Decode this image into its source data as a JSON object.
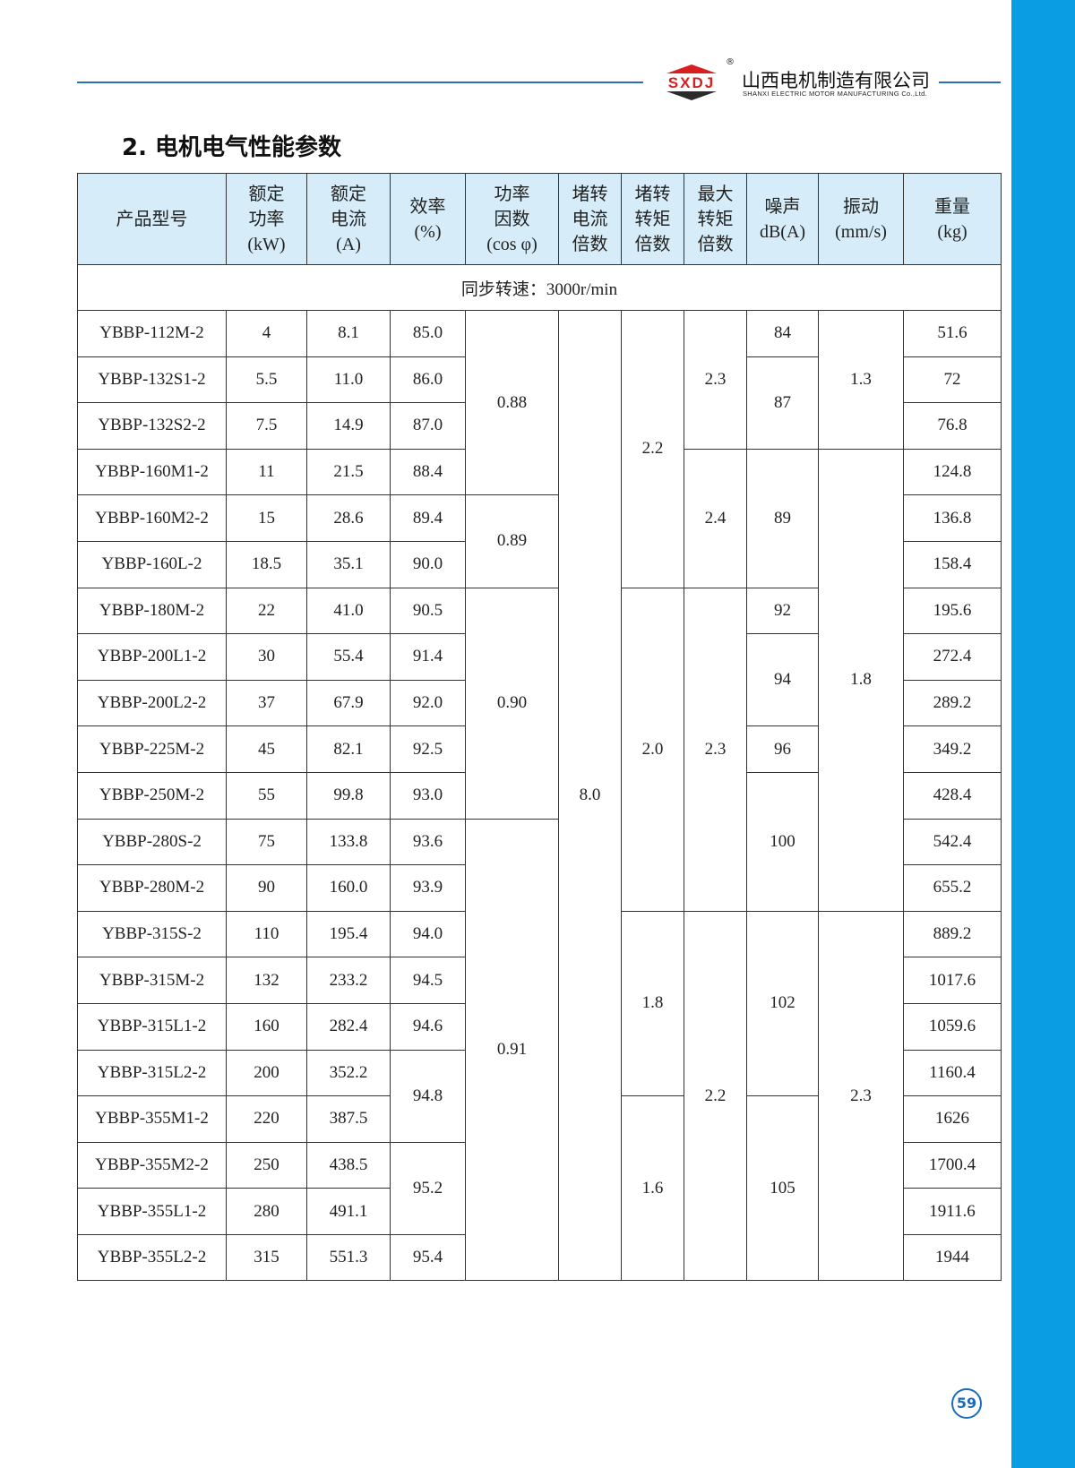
{
  "brand": {
    "name_cn": "山西电机制造有限公司",
    "name_en": "SHANXI ELECTRIC MOTOR MANUFACTURING Co.,Ltd.",
    "logo_text": "SXDJ",
    "registered": "®",
    "colors": {
      "logo_red": "#d81e1e",
      "logo_dark": "#2b2b2b",
      "accent_blue": "#0a9de4",
      "line_blue": "#2a6fb5"
    }
  },
  "section_title": "2. 电机电气性能参数",
  "table": {
    "headers": [
      "产品型号",
      "额定\n功率\n(kW)",
      "额定\n电流\n(A)",
      "效率\n(%)",
      "功率\n因数\n(cos φ)",
      "堵转\n电流\n倍数",
      "堵转\n转矩\n倍数",
      "最大\n转矩\n倍数",
      "噪声\ndB(A)",
      "振动\n(mm/s)",
      "重量\n(kg)"
    ],
    "group_label": "同步转速：3000r/min",
    "rows": [
      [
        {
          "t": "YBBP-112M-2"
        },
        {
          "t": "4"
        },
        {
          "t": "8.1"
        },
        {
          "t": "85.0"
        },
        {
          "t": "0.88",
          "rs": 4
        },
        {
          "t": "8.0",
          "rs": 21
        },
        {
          "t": "2.2",
          "rs": 6
        },
        {
          "t": "2.3",
          "rs": 3
        },
        {
          "t": "84"
        },
        {
          "t": "1.3",
          "rs": 3
        },
        {
          "t": "51.6"
        }
      ],
      [
        {
          "t": "YBBP-132S1-2"
        },
        {
          "t": "5.5"
        },
        {
          "t": "11.0"
        },
        {
          "t": "86.0"
        },
        {
          "t": "87",
          "rs": 2
        },
        {
          "t": "72"
        }
      ],
      [
        {
          "t": "YBBP-132S2-2"
        },
        {
          "t": "7.5"
        },
        {
          "t": "14.9"
        },
        {
          "t": "87.0"
        },
        {
          "t": "76.8"
        }
      ],
      [
        {
          "t": "YBBP-160M1-2"
        },
        {
          "t": "11"
        },
        {
          "t": "21.5"
        },
        {
          "t": "88.4"
        },
        {
          "t": "2.4",
          "rs": 3
        },
        {
          "t": "89",
          "rs": 3
        },
        {
          "t": "1.8",
          "rs": 10
        },
        {
          "t": "124.8"
        }
      ],
      [
        {
          "t": "YBBP-160M2-2"
        },
        {
          "t": "15"
        },
        {
          "t": "28.6"
        },
        {
          "t": "89.4"
        },
        {
          "t": "0.89",
          "rs": 2
        },
        {
          "t": "136.8"
        }
      ],
      [
        {
          "t": "YBBP-160L-2"
        },
        {
          "t": "18.5"
        },
        {
          "t": "35.1"
        },
        {
          "t": "90.0"
        },
        {
          "t": "158.4"
        }
      ],
      [
        {
          "t": "YBBP-180M-2"
        },
        {
          "t": "22"
        },
        {
          "t": "41.0"
        },
        {
          "t": "90.5"
        },
        {
          "t": "0.90",
          "rs": 5
        },
        {
          "t": "2.0",
          "rs": 7
        },
        {
          "t": "2.3",
          "rs": 7
        },
        {
          "t": "92"
        },
        {
          "t": "195.6"
        }
      ],
      [
        {
          "t": "YBBP-200L1-2"
        },
        {
          "t": "30"
        },
        {
          "t": "55.4"
        },
        {
          "t": "91.4"
        },
        {
          "t": "94",
          "rs": 2
        },
        {
          "t": "272.4"
        }
      ],
      [
        {
          "t": "YBBP-200L2-2"
        },
        {
          "t": "37"
        },
        {
          "t": "67.9"
        },
        {
          "t": "92.0"
        },
        {
          "t": "289.2"
        }
      ],
      [
        {
          "t": "YBBP-225M-2"
        },
        {
          "t": "45"
        },
        {
          "t": "82.1"
        },
        {
          "t": "92.5"
        },
        {
          "t": "96"
        },
        {
          "t": "349.2"
        }
      ],
      [
        {
          "t": "YBBP-250M-2"
        },
        {
          "t": "55"
        },
        {
          "t": "99.8"
        },
        {
          "t": "93.0"
        },
        {
          "t": "100",
          "rs": 3
        },
        {
          "t": "428.4"
        }
      ],
      [
        {
          "t": "YBBP-280S-2"
        },
        {
          "t": "75"
        },
        {
          "t": "133.8"
        },
        {
          "t": "93.6"
        },
        {
          "t": "0.91",
          "rs": 10
        },
        {
          "t": "542.4"
        }
      ],
      [
        {
          "t": "YBBP-280M-2"
        },
        {
          "t": "90"
        },
        {
          "t": "160.0"
        },
        {
          "t": "93.9"
        },
        {
          "t": "655.2"
        }
      ],
      [
        {
          "t": "YBBP-315S-2"
        },
        {
          "t": "110"
        },
        {
          "t": "195.4"
        },
        {
          "t": "94.0"
        },
        {
          "t": "1.8",
          "rs": 4
        },
        {
          "t": "2.2",
          "rs": 8
        },
        {
          "t": "102",
          "rs": 4
        },
        {
          "t": "2.3",
          "rs": 8
        },
        {
          "t": "889.2"
        }
      ],
      [
        {
          "t": "YBBP-315M-2"
        },
        {
          "t": "132"
        },
        {
          "t": "233.2"
        },
        {
          "t": "94.5"
        },
        {
          "t": "1017.6"
        }
      ],
      [
        {
          "t": "YBBP-315L1-2"
        },
        {
          "t": "160"
        },
        {
          "t": "282.4"
        },
        {
          "t": "94.6"
        },
        {
          "t": "1059.6"
        }
      ],
      [
        {
          "t": "YBBP-315L2-2"
        },
        {
          "t": "200"
        },
        {
          "t": "352.2"
        },
        {
          "t": "94.8",
          "rs": 2
        },
        {
          "t": "1160.4"
        }
      ],
      [
        {
          "t": "YBBP-355M1-2"
        },
        {
          "t": "220"
        },
        {
          "t": "387.5"
        },
        {
          "t": "1.6",
          "rs": 4
        },
        {
          "t": "105",
          "rs": 4
        },
        {
          "t": "1626"
        }
      ],
      [
        {
          "t": "YBBP-355M2-2"
        },
        {
          "t": "250"
        },
        {
          "t": "438.5"
        },
        {
          "t": "95.2",
          "rs": 2
        },
        {
          "t": "1700.4"
        }
      ],
      [
        {
          "t": "YBBP-355L1-2"
        },
        {
          "t": "280"
        },
        {
          "t": "491.1"
        },
        {
          "t": "1911.6"
        }
      ],
      [
        {
          "t": "YBBP-355L2-2"
        },
        {
          "t": "315"
        },
        {
          "t": "551.3"
        },
        {
          "t": "95.4"
        },
        {
          "t": "1944"
        }
      ]
    ]
  },
  "page_number": "59"
}
